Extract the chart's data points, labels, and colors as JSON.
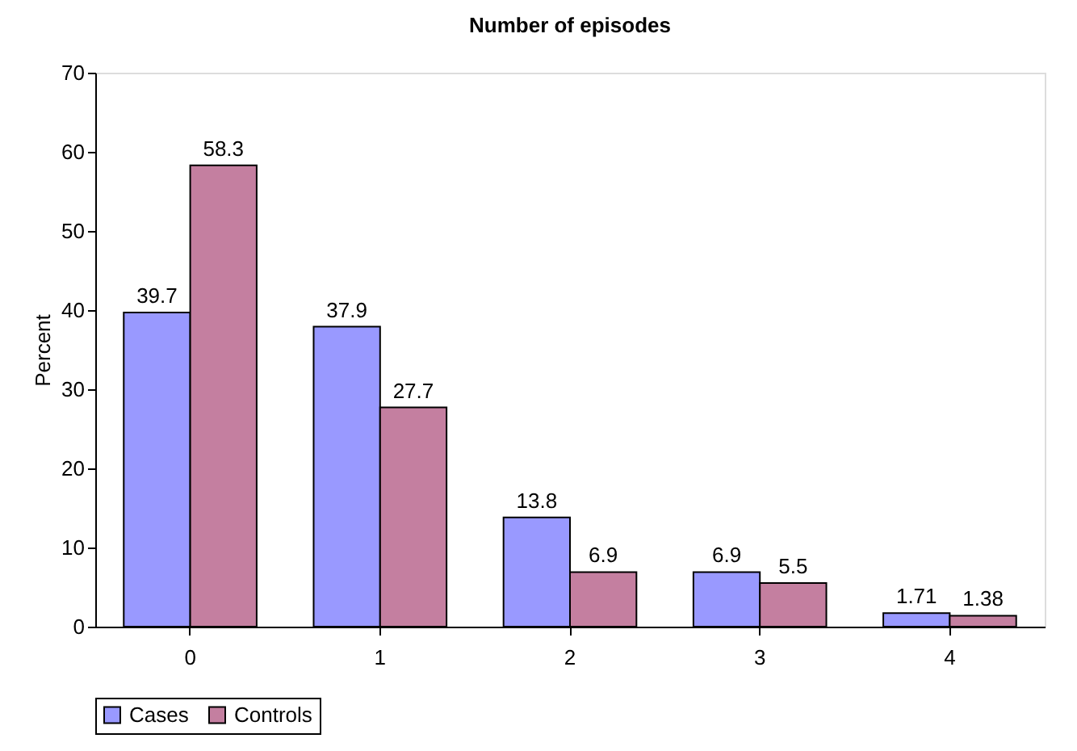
{
  "chart_data": {
    "type": "bar",
    "title": "Number of episodes",
    "ylabel": "Percent",
    "categories": [
      "0",
      "1",
      "2",
      "3",
      "4"
    ],
    "series": [
      {
        "name": "Cases",
        "color": "#9999ff",
        "values": [
          39.7,
          37.9,
          13.8,
          6.9,
          1.71
        ]
      },
      {
        "name": "Controls",
        "color": "#c47fa0",
        "values": [
          58.3,
          27.7,
          6.9,
          5.5,
          1.38
        ]
      }
    ],
    "ylim": [
      0,
      70
    ],
    "yticks": [
      0,
      10,
      20,
      30,
      40,
      50,
      60,
      70
    ],
    "grid": false,
    "legend": "bottom",
    "data_labels": true
  }
}
